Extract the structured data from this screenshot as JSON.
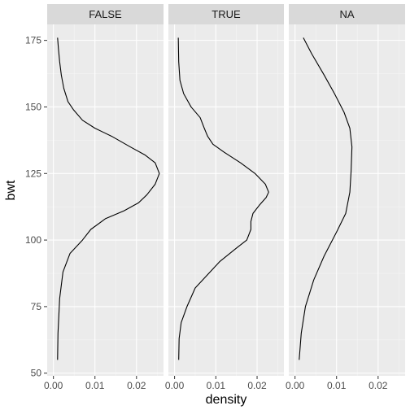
{
  "chart_data": {
    "type": "line",
    "facets": [
      "FALSE",
      "TRUE",
      "NA"
    ],
    "xlabel": "density",
    "ylabel": "bwt",
    "xlim": [
      -0.0015,
      0.0265
    ],
    "ylim": [
      49,
      181
    ],
    "x_ticks": [
      0,
      0.01,
      0.02
    ],
    "x_tick_labels": [
      "0.00",
      "0.01",
      "0.02"
    ],
    "y_ticks": [
      50,
      75,
      100,
      125,
      150,
      175
    ],
    "y_tick_labels": [
      "50",
      "75",
      "100",
      "125",
      "150",
      "175"
    ],
    "grid": true,
    "series": [
      {
        "facet": "FALSE",
        "points": [
          [
            0.001,
            55
          ],
          [
            0.0011,
            65
          ],
          [
            0.0015,
            78
          ],
          [
            0.0023,
            88
          ],
          [
            0.004,
            95
          ],
          [
            0.007,
            100
          ],
          [
            0.009,
            104
          ],
          [
            0.0125,
            108
          ],
          [
            0.017,
            111
          ],
          [
            0.0205,
            114
          ],
          [
            0.0225,
            117
          ],
          [
            0.0245,
            121
          ],
          [
            0.0255,
            125
          ],
          [
            0.0245,
            129
          ],
          [
            0.022,
            132
          ],
          [
            0.0185,
            135
          ],
          [
            0.014,
            139
          ],
          [
            0.01,
            142
          ],
          [
            0.007,
            145
          ],
          [
            0.0048,
            149
          ],
          [
            0.0035,
            152
          ],
          [
            0.0025,
            157
          ],
          [
            0.0019,
            162
          ],
          [
            0.0015,
            167
          ],
          [
            0.0012,
            172
          ],
          [
            0.001,
            176
          ]
        ]
      },
      {
        "facet": "TRUE",
        "points": [
          [
            0.001,
            55
          ],
          [
            0.0011,
            63
          ],
          [
            0.0016,
            69
          ],
          [
            0.003,
            75
          ],
          [
            0.005,
            82
          ],
          [
            0.008,
            87
          ],
          [
            0.011,
            92
          ],
          [
            0.015,
            97
          ],
          [
            0.0175,
            100
          ],
          [
            0.0185,
            104
          ],
          [
            0.0185,
            107
          ],
          [
            0.019,
            110
          ],
          [
            0.0205,
            113
          ],
          [
            0.0222,
            116
          ],
          [
            0.0228,
            118
          ],
          [
            0.022,
            121
          ],
          [
            0.0195,
            125
          ],
          [
            0.016,
            129
          ],
          [
            0.012,
            133
          ],
          [
            0.0093,
            136
          ],
          [
            0.008,
            139
          ],
          [
            0.0072,
            142
          ],
          [
            0.0062,
            146
          ],
          [
            0.004,
            150
          ],
          [
            0.0022,
            155
          ],
          [
            0.0013,
            160
          ],
          [
            0.001,
            167
          ],
          [
            0.0009,
            176
          ]
        ]
      },
      {
        "facet": "NA",
        "points": [
          [
            0.001,
            55
          ],
          [
            0.0015,
            65
          ],
          [
            0.0025,
            75
          ],
          [
            0.0045,
            85
          ],
          [
            0.007,
            94
          ],
          [
            0.01,
            103
          ],
          [
            0.0122,
            110
          ],
          [
            0.0132,
            118
          ],
          [
            0.0135,
            126
          ],
          [
            0.0137,
            135
          ],
          [
            0.0132,
            142
          ],
          [
            0.0118,
            148
          ],
          [
            0.0095,
            155
          ],
          [
            0.007,
            162
          ],
          [
            0.004,
            170
          ],
          [
            0.002,
            176
          ]
        ]
      }
    ]
  }
}
